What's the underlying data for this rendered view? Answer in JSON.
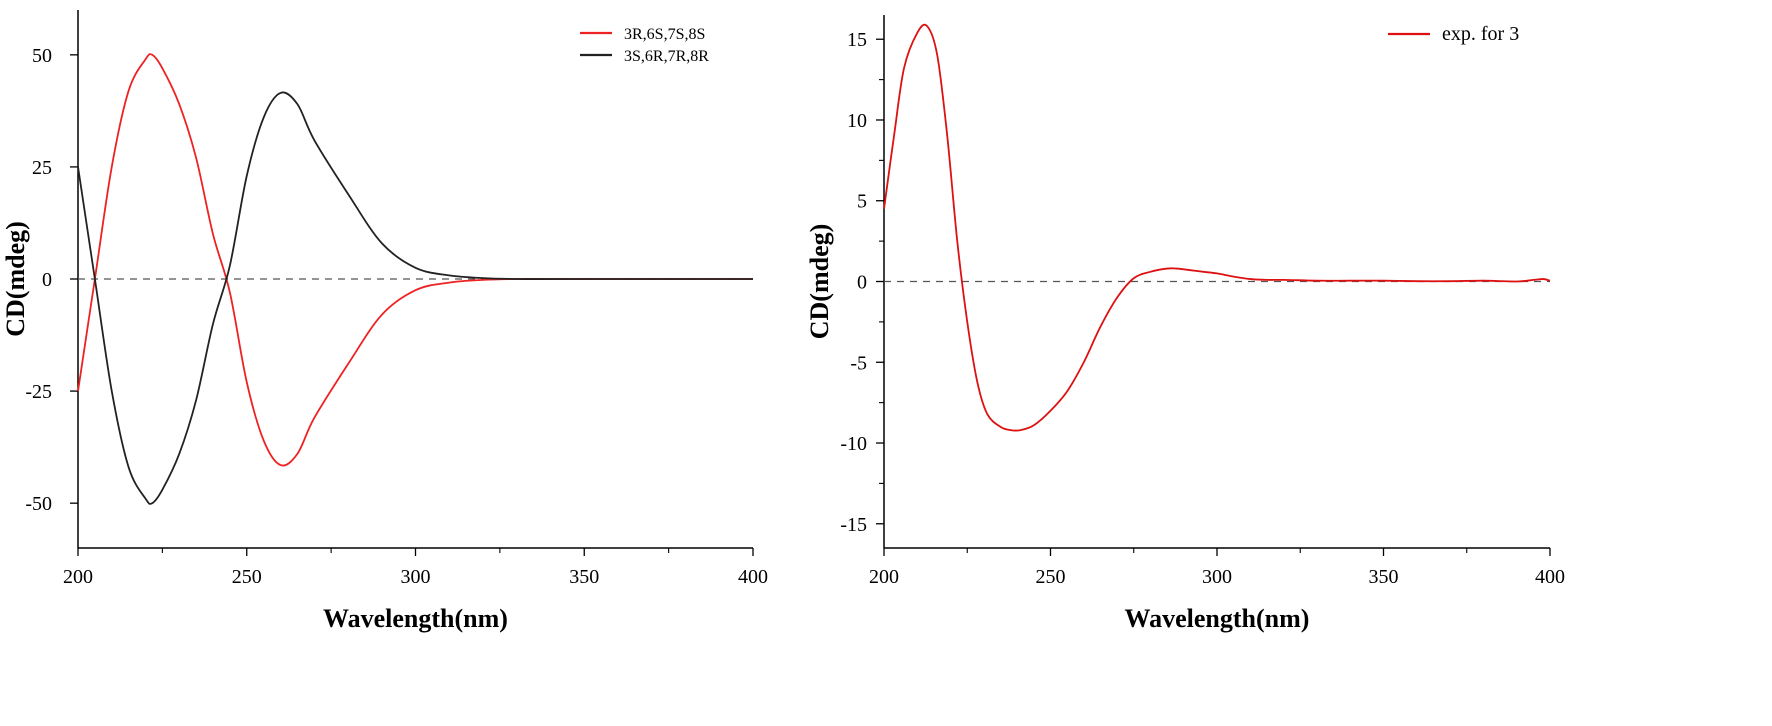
{
  "chart_data": [
    {
      "type": "line",
      "xlabel": "Wavelength(nm)",
      "ylabel": "CD(mdeg)",
      "xlim": [
        200,
        400
      ],
      "ylim": [
        -60,
        60
      ],
      "xticks": [
        200,
        250,
        300,
        350,
        400
      ],
      "yticks": [
        -50,
        -25,
        0,
        25,
        50
      ],
      "x_tick_labels": [
        "200",
        "250",
        "300",
        "350",
        "400"
      ],
      "y_tick_labels": [
        "-50",
        "-25",
        "0",
        "25",
        "50"
      ],
      "zero_line": true,
      "grid": false,
      "legend_position": "top-right",
      "series": [
        {
          "name": "3R,6S,7S,8S",
          "color": "#ee2222",
          "x": [
            200,
            205,
            210,
            215,
            220,
            222,
            225,
            230,
            235,
            240,
            245,
            250,
            255,
            260,
            265,
            270,
            280,
            290,
            300,
            310,
            320,
            330,
            350,
            400
          ],
          "y": [
            -25,
            0,
            25,
            42,
            49,
            50,
            47,
            39,
            27,
            10,
            -3,
            -23,
            -36,
            -41.5,
            -39,
            -31,
            -19,
            -8,
            -2.5,
            -0.8,
            -0.2,
            0,
            0,
            0
          ]
        },
        {
          "name": "3S,6R,7R,8R",
          "color": "#222222",
          "x": [
            200,
            205,
            210,
            215,
            220,
            222,
            225,
            230,
            235,
            240,
            245,
            250,
            255,
            260,
            265,
            270,
            280,
            290,
            300,
            310,
            320,
            330,
            350,
            400
          ],
          "y": [
            25,
            0,
            -25,
            -42,
            -49,
            -50,
            -47,
            -39,
            -27,
            -10,
            3,
            23,
            36,
            41.5,
            39,
            31,
            19,
            8,
            2.5,
            0.8,
            0.2,
            0,
            0,
            0
          ]
        }
      ]
    },
    {
      "type": "line",
      "xlabel": "Wavelength(nm)",
      "ylabel": "CD(mdeg)",
      "xlim": [
        200,
        400
      ],
      "ylim": [
        -16.5,
        16.5
      ],
      "xticks": [
        200,
        250,
        300,
        350,
        400
      ],
      "yticks": [
        -15,
        -10,
        -5,
        0,
        5,
        10,
        15
      ],
      "x_tick_labels": [
        "200",
        "250",
        "300",
        "350",
        "400"
      ],
      "y_tick_labels": [
        "-15",
        "-10",
        "-5",
        "0",
        "5",
        "10",
        "15"
      ],
      "zero_line": true,
      "grid": false,
      "legend_position": "top-right",
      "series": [
        {
          "name": "exp. for 3",
          "color": "#dd1111",
          "x": [
            200,
            203,
            206,
            210,
            213,
            216,
            219,
            222,
            225,
            228,
            231,
            235,
            238,
            241,
            245,
            250,
            255,
            260,
            265,
            270,
            275,
            280,
            285,
            288,
            292,
            296,
            300,
            305,
            310,
            315,
            320,
            330,
            340,
            350,
            360,
            370,
            380,
            390,
            395,
            398,
            400
          ],
          "y": [
            4.5,
            9,
            13.2,
            15.4,
            15.8,
            14,
            9,
            2.5,
            -2.5,
            -6.2,
            -8.2,
            -9,
            -9.2,
            -9.2,
            -8.9,
            -8,
            -6.8,
            -5,
            -2.8,
            -1,
            0.2,
            0.6,
            0.8,
            0.8,
            0.7,
            0.6,
            0.5,
            0.3,
            0.15,
            0.1,
            0.1,
            0.05,
            0.05,
            0.05,
            0.02,
            0.02,
            0.05,
            0,
            0.1,
            0.15,
            0.05
          ]
        }
      ]
    }
  ]
}
